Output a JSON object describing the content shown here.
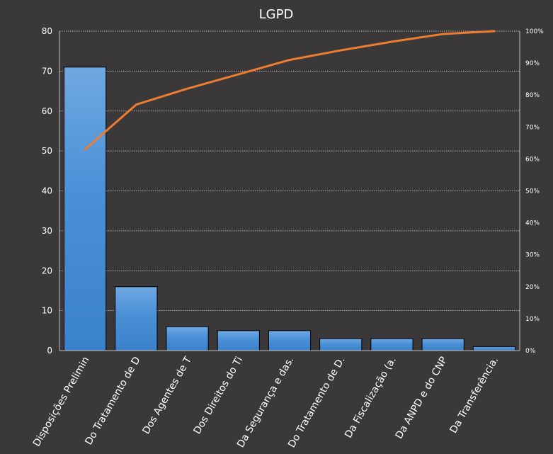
{
  "chart_data": {
    "type": "bar",
    "title": "LGPD",
    "categories": [
      "Disposições Prelimin",
      "Do Tratamento de D",
      "Dos Agentes de T",
      "Dos Direitos do Ti",
      "Da Segurança e das.",
      "Do Tratamento de D.",
      "Da Fiscalização (a.",
      "Da ANPD e do CNP",
      "Da Transferência."
    ],
    "series": [
      {
        "type": "bar",
        "values": [
          71,
          16,
          6,
          5,
          5,
          3,
          3,
          3,
          1
        ]
      },
      {
        "type": "line",
        "axis": "secondary",
        "values": [
          63,
          77,
          82,
          86.5,
          91,
          94,
          96.7,
          99.1,
          100
        ]
      }
    ],
    "ylim": [
      0,
      80
    ],
    "yticks": [
      "0",
      "10",
      "20",
      "30",
      "40",
      "50",
      "60",
      "70",
      "80"
    ],
    "y2lim": [
      0,
      100
    ],
    "y2ticks": [
      "0%",
      "10%",
      "20%",
      "30%",
      "40%",
      "50%",
      "60%",
      "70%",
      "80%",
      "90%",
      "100%"
    ],
    "grid": true,
    "colors": {
      "background": "#3a3838",
      "bar_fill_top": "#6fa8e2",
      "bar_fill": "#3f88d0",
      "bar_stroke": "#000000",
      "line": "#ed7d31",
      "grid": "#d9d9d9",
      "text": "#ffffff"
    }
  }
}
